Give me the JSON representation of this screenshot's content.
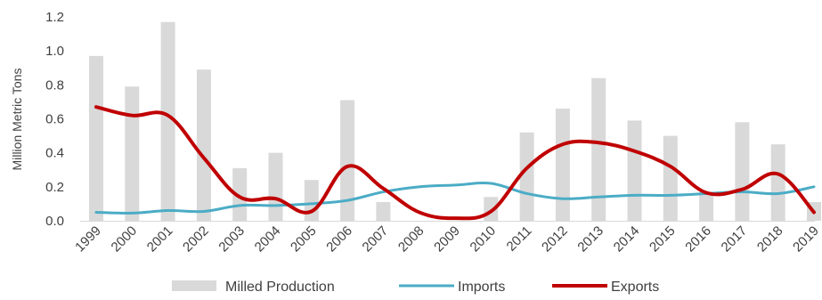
{
  "chart_data": {
    "type": "bar",
    "title": "",
    "xlabel": "",
    "ylabel": "Million Metric Tons",
    "ylim": [
      0,
      1.2
    ],
    "yticks": [
      "0.0",
      "0.2",
      "0.4",
      "0.6",
      "0.8",
      "1.0",
      "1.2"
    ],
    "grid": "none",
    "legend_position": "bottom",
    "categories": [
      "1999",
      "2000",
      "2001",
      "2002",
      "2003",
      "2004",
      "2005",
      "2006",
      "2007",
      "2008",
      "2009",
      "2010",
      "2011",
      "2012",
      "2013",
      "2014",
      "2015",
      "2016",
      "2017",
      "2018",
      "2019"
    ],
    "series": [
      {
        "name": "Milled Production",
        "kind": "bar",
        "color": "#d9d9d9",
        "values": [
          0.97,
          0.79,
          1.17,
          0.89,
          0.31,
          0.4,
          0.24,
          0.71,
          0.11,
          0.0,
          0.0,
          0.14,
          0.52,
          0.66,
          0.84,
          0.59,
          0.5,
          0.17,
          0.58,
          0.45,
          0.11
        ]
      },
      {
        "name": "Imports",
        "kind": "line",
        "color": "#4bacc6",
        "values": [
          0.05,
          0.045,
          0.06,
          0.055,
          0.09,
          0.09,
          0.1,
          0.12,
          0.17,
          0.2,
          0.21,
          0.22,
          0.16,
          0.13,
          0.14,
          0.15,
          0.15,
          0.16,
          0.17,
          0.16,
          0.2
        ]
      },
      {
        "name": "Exports",
        "kind": "line",
        "color": "#c00000",
        "values": [
          0.67,
          0.62,
          0.62,
          0.37,
          0.14,
          0.13,
          0.055,
          0.32,
          0.19,
          0.05,
          0.015,
          0.055,
          0.31,
          0.45,
          0.46,
          0.41,
          0.32,
          0.165,
          0.185,
          0.275,
          0.05
        ]
      }
    ]
  }
}
